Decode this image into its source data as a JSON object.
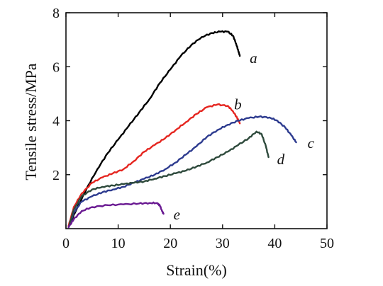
{
  "chart_data": {
    "type": "line",
    "title": "",
    "xlabel": "Strain(%)",
    "ylabel": "Tensile stress/MPa",
    "xlim": [
      0,
      50
    ],
    "ylim": [
      0,
      8
    ],
    "x_ticks": [
      0,
      10,
      20,
      30,
      40,
      50
    ],
    "y_ticks": [
      2,
      4,
      6,
      8
    ],
    "grid": false,
    "legend": "none",
    "series": [
      {
        "name": "a",
        "color": "#000000",
        "x": [
          0.5,
          2,
          4,
          6,
          8,
          10,
          12,
          14,
          16,
          18,
          20,
          22,
          24,
          26,
          28,
          29.5,
          31,
          32,
          32.6,
          33,
          33.3
        ],
        "y": [
          0.1,
          0.7,
          1.5,
          2.2,
          2.8,
          3.3,
          3.8,
          4.3,
          4.8,
          5.4,
          5.9,
          6.4,
          6.8,
          7.1,
          7.25,
          7.3,
          7.3,
          7.15,
          6.85,
          6.6,
          6.4
        ]
      },
      {
        "name": "b",
        "color": "#e52620",
        "x": [
          0.5,
          1.5,
          3,
          5,
          7,
          9,
          11,
          13,
          15,
          17,
          19,
          21,
          23,
          25,
          27,
          29,
          31,
          32,
          32.8,
          33.3
        ],
        "y": [
          0.1,
          0.8,
          1.3,
          1.7,
          1.9,
          2.05,
          2.2,
          2.5,
          2.85,
          3.1,
          3.35,
          3.65,
          3.95,
          4.25,
          4.5,
          4.6,
          4.55,
          4.35,
          4.1,
          3.9
        ]
      },
      {
        "name": "c",
        "color": "#2d3b8f",
        "x": [
          0.5,
          1.5,
          3,
          5,
          7,
          9,
          11,
          13,
          15,
          17,
          19,
          21,
          23,
          25,
          27,
          29,
          31,
          33,
          35,
          37,
          39,
          40.5,
          42,
          43.2,
          44.1
        ],
        "y": [
          0.05,
          0.6,
          1.0,
          1.2,
          1.35,
          1.45,
          1.55,
          1.7,
          1.85,
          2.0,
          2.2,
          2.45,
          2.75,
          3.05,
          3.4,
          3.65,
          3.85,
          4.0,
          4.1,
          4.15,
          4.12,
          4.0,
          3.75,
          3.45,
          3.2
        ]
      },
      {
        "name": "d",
        "color": "#2e4a3c",
        "x": [
          0.5,
          1.5,
          3,
          5,
          7,
          9,
          11,
          13,
          15,
          17,
          19,
          21,
          23,
          25,
          27,
          29,
          31,
          33,
          35,
          36.5,
          37.5,
          38.3,
          38.8
        ],
        "y": [
          0.05,
          0.7,
          1.2,
          1.45,
          1.55,
          1.6,
          1.65,
          1.7,
          1.75,
          1.85,
          1.95,
          2.05,
          2.15,
          2.3,
          2.45,
          2.65,
          2.85,
          3.1,
          3.35,
          3.6,
          3.5,
          3.05,
          2.65
        ]
      },
      {
        "name": "e",
        "color": "#6a1a92",
        "x": [
          0.5,
          1.5,
          3,
          5,
          8,
          11,
          14,
          16,
          17.5,
          18,
          18.4,
          18.7
        ],
        "y": [
          0.05,
          0.35,
          0.65,
          0.8,
          0.87,
          0.9,
          0.93,
          0.95,
          0.95,
          0.85,
          0.65,
          0.55
        ]
      }
    ]
  }
}
